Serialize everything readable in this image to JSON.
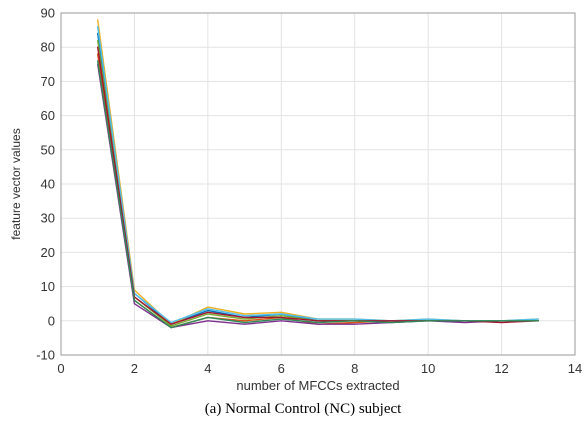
{
  "caption": "(a) Normal Control (NC) subject",
  "chart_data": {
    "type": "line",
    "title": "",
    "xlabel": "number of MFCCs extracted",
    "ylabel": "feature vector values",
    "xlim": [
      0,
      14
    ],
    "ylim": [
      -10,
      90
    ],
    "xticks": [
      "0",
      "2",
      "4",
      "6",
      "8",
      "10",
      "12",
      "14"
    ],
    "yticks": [
      "-10",
      "0",
      "10",
      "20",
      "30",
      "40",
      "50",
      "60",
      "70",
      "80",
      "90"
    ],
    "grid": true,
    "legend": "none",
    "x": [
      1,
      2,
      3,
      4,
      5,
      6,
      7,
      8,
      9,
      10,
      11,
      12,
      13
    ],
    "series": [
      {
        "color": "#0072BD",
        "values": [
          84,
          8,
          -1,
          3,
          1,
          2,
          0,
          0,
          0,
          0,
          0,
          0,
          0
        ]
      },
      {
        "color": "#D95319",
        "values": [
          78,
          6,
          -2,
          1,
          0,
          1,
          -1,
          -0.5,
          0,
          0,
          0,
          0,
          0
        ]
      },
      {
        "color": "#EDB120",
        "values": [
          88,
          9,
          -1,
          4,
          2,
          2.5,
          0.5,
          0.5,
          0,
          0.5,
          0,
          0,
          0.5
        ]
      },
      {
        "color": "#7E2F8E",
        "values": [
          75,
          5,
          -2,
          0,
          -1,
          0,
          -1,
          -1,
          -0.5,
          0,
          -0.5,
          0,
          0
        ]
      },
      {
        "color": "#77AC30",
        "values": [
          82,
          7,
          -1.5,
          2,
          0.5,
          1.5,
          0,
          0,
          0,
          0,
          0,
          0,
          0
        ]
      },
      {
        "color": "#4DBEEE",
        "values": [
          86,
          8,
          -0.5,
          3.5,
          1.5,
          2,
          0.5,
          0.5,
          0,
          0.5,
          0,
          0,
          0.5
        ]
      },
      {
        "color": "#A2142F",
        "values": [
          80,
          7,
          -1,
          2.5,
          1,
          1,
          0,
          0,
          0,
          0,
          0,
          -0.5,
          0
        ]
      },
      {
        "color": "#2E8B57",
        "values": [
          76,
          6,
          -2,
          1,
          -0.5,
          0.5,
          -0.5,
          0,
          -0.5,
          0,
          0,
          0,
          0
        ]
      }
    ]
  }
}
